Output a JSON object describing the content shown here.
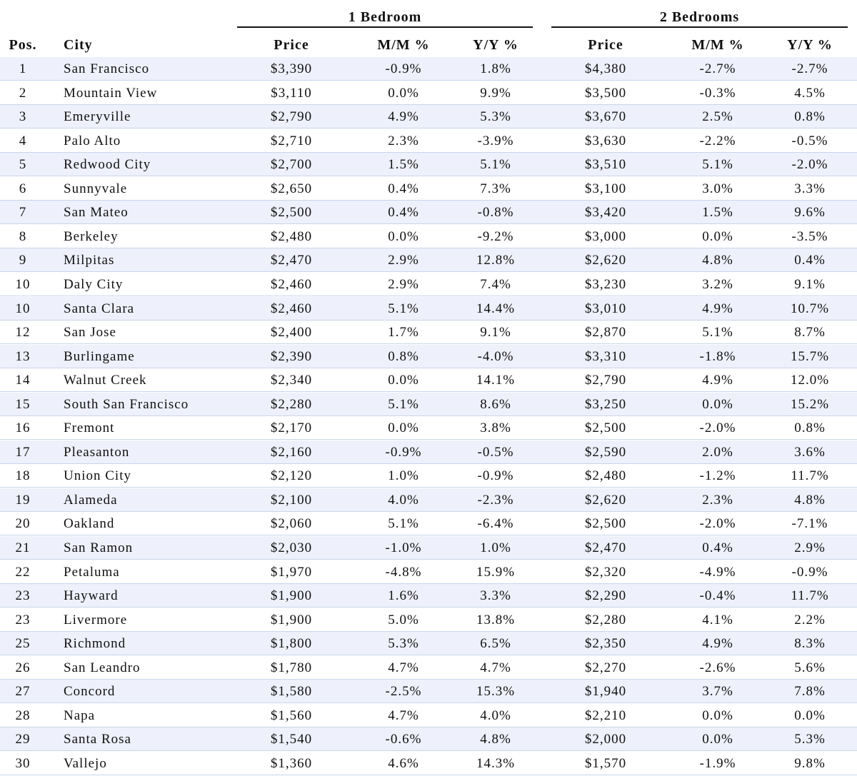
{
  "table": {
    "groups": [
      "1 Bedroom",
      "2 Bedrooms"
    ],
    "columns": [
      "Pos.",
      "City",
      "Price",
      "M/M %",
      "Y/Y %",
      "Price",
      "M/M %",
      "Y/Y %"
    ],
    "rows": [
      [
        "1",
        "San Francisco",
        "$3,390",
        "-0.9%",
        "1.8%",
        "$4,380",
        "-2.7%",
        "-2.7%"
      ],
      [
        "2",
        "Mountain View",
        "$3,110",
        "0.0%",
        "9.9%",
        "$3,500",
        "-0.3%",
        "4.5%"
      ],
      [
        "3",
        "Emeryville",
        "$2,790",
        "4.9%",
        "5.3%",
        "$3,670",
        "2.5%",
        "0.8%"
      ],
      [
        "4",
        "Palo Alto",
        "$2,710",
        "2.3%",
        "-3.9%",
        "$3,630",
        "-2.2%",
        "-0.5%"
      ],
      [
        "5",
        "Redwood City",
        "$2,700",
        "1.5%",
        "5.1%",
        "$3,510",
        "5.1%",
        "-2.0%"
      ],
      [
        "6",
        "Sunnyvale",
        "$2,650",
        "0.4%",
        "7.3%",
        "$3,100",
        "3.0%",
        "3.3%"
      ],
      [
        "7",
        "San Mateo",
        "$2,500",
        "0.4%",
        "-0.8%",
        "$3,420",
        "1.5%",
        "9.6%"
      ],
      [
        "8",
        "Berkeley",
        "$2,480",
        "0.0%",
        "-9.2%",
        "$3,000",
        "0.0%",
        "-3.5%"
      ],
      [
        "9",
        "Milpitas",
        "$2,470",
        "2.9%",
        "12.8%",
        "$2,620",
        "4.8%",
        "0.4%"
      ],
      [
        "10",
        "Daly City",
        "$2,460",
        "2.9%",
        "7.4%",
        "$3,230",
        "3.2%",
        "9.1%"
      ],
      [
        "10",
        "Santa Clara",
        "$2,460",
        "5.1%",
        "14.4%",
        "$3,010",
        "4.9%",
        "10.7%"
      ],
      [
        "12",
        "San Jose",
        "$2,400",
        "1.7%",
        "9.1%",
        "$2,870",
        "5.1%",
        "8.7%"
      ],
      [
        "13",
        "Burlingame",
        "$2,390",
        "0.8%",
        "-4.0%",
        "$3,310",
        "-1.8%",
        "15.7%"
      ],
      [
        "14",
        "Walnut Creek",
        "$2,340",
        "0.0%",
        "14.1%",
        "$2,790",
        "4.9%",
        "12.0%"
      ],
      [
        "15",
        "South San Francisco",
        "$2,280",
        "5.1%",
        "8.6%",
        "$3,250",
        "0.0%",
        "15.2%"
      ],
      [
        "16",
        "Fremont",
        "$2,170",
        "0.0%",
        "3.8%",
        "$2,500",
        "-2.0%",
        "0.8%"
      ],
      [
        "17",
        "Pleasanton",
        "$2,160",
        "-0.9%",
        "-0.5%",
        "$2,590",
        "2.0%",
        "3.6%"
      ],
      [
        "18",
        "Union City",
        "$2,120",
        "1.0%",
        "-0.9%",
        "$2,480",
        "-1.2%",
        "11.7%"
      ],
      [
        "19",
        "Alameda",
        "$2,100",
        "4.0%",
        "-2.3%",
        "$2,620",
        "2.3%",
        "4.8%"
      ],
      [
        "20",
        "Oakland",
        "$2,060",
        "5.1%",
        "-6.4%",
        "$2,500",
        "-2.0%",
        "-7.1%"
      ],
      [
        "21",
        "San Ramon",
        "$2,030",
        "-1.0%",
        "1.0%",
        "$2,470",
        "0.4%",
        "2.9%"
      ],
      [
        "22",
        "Petaluma",
        "$1,970",
        "-4.8%",
        "15.9%",
        "$2,320",
        "-4.9%",
        "-0.9%"
      ],
      [
        "23",
        "Hayward",
        "$1,900",
        "1.6%",
        "3.3%",
        "$2,290",
        "-0.4%",
        "11.7%"
      ],
      [
        "23",
        "Livermore",
        "$1,900",
        "5.0%",
        "13.8%",
        "$2,280",
        "4.1%",
        "2.2%"
      ],
      [
        "25",
        "Richmond",
        "$1,800",
        "5.3%",
        "6.5%",
        "$2,350",
        "4.9%",
        "8.3%"
      ],
      [
        "26",
        "San Leandro",
        "$1,780",
        "4.7%",
        "4.7%",
        "$2,270",
        "-2.6%",
        "5.6%"
      ],
      [
        "27",
        "Concord",
        "$1,580",
        "-2.5%",
        "15.3%",
        "$1,940",
        "3.7%",
        "7.8%"
      ],
      [
        "28",
        "Napa",
        "$1,560",
        "4.7%",
        "4.0%",
        "$2,210",
        "0.0%",
        "0.0%"
      ],
      [
        "29",
        "Santa Rosa",
        "$1,540",
        "-0.6%",
        "4.8%",
        "$2,000",
        "0.0%",
        "5.3%"
      ],
      [
        "30",
        "Vallejo",
        "$1,360",
        "4.6%",
        "14.3%",
        "$1,570",
        "-1.9%",
        "9.8%"
      ]
    ]
  }
}
